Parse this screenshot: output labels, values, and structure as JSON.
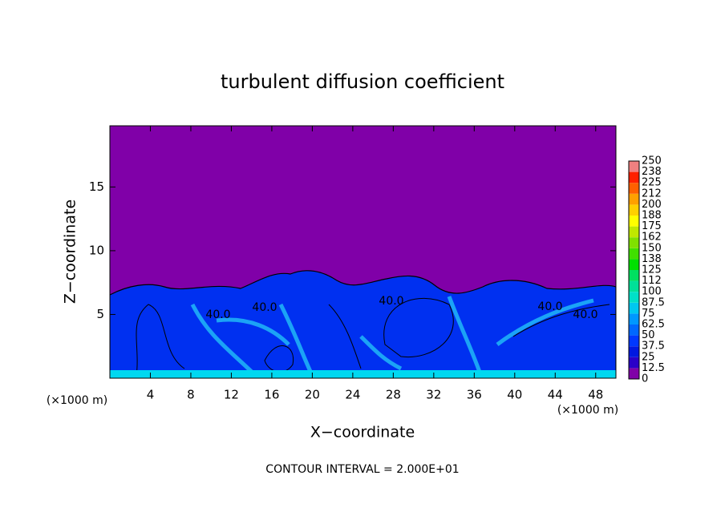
{
  "chart_data": {
    "type": "contour",
    "title": "turbulent diffusion coefficient",
    "x_label": "X−coordinate",
    "y_label": "Z−coordinate",
    "x_unit": "(×1000 m)",
    "y_unit": "(×1000 m)",
    "xlim": [
      0,
      50
    ],
    "ylim": [
      0,
      19.8
    ],
    "xticks": [
      4,
      8,
      12,
      16,
      20,
      24,
      28,
      32,
      36,
      40,
      44,
      48
    ],
    "yticks": [
      5,
      10,
      15
    ],
    "contour_labels": [
      {
        "value": 40,
        "label": "40.0"
      },
      {
        "value": 40,
        "label": "40.0"
      },
      {
        "value": 40,
        "label": "40.0"
      },
      {
        "value": 40,
        "label": "40.0"
      },
      {
        "value": 40,
        "label": "40.0"
      }
    ],
    "colorbar": {
      "levels": [
        0,
        12.5,
        25,
        37.5,
        50,
        62.5,
        75,
        87.5,
        100,
        112,
        125,
        138,
        150,
        162,
        175,
        188,
        200,
        212,
        225,
        238,
        250
      ],
      "colors": [
        "#8000a8",
        "#2a00c8",
        "#0018e0",
        "#0038ff",
        "#0068ff",
        "#0098ff",
        "#00c8f0",
        "#00e0c8",
        "#00e098",
        "#00e060",
        "#00e000",
        "#40e000",
        "#80e000",
        "#c0e800",
        "#ffff00",
        "#ffd000",
        "#ffa000",
        "#ff6000",
        "#ff2000",
        "#f08080"
      ]
    },
    "footnote": "CONTOUR INTERVAL = 2.000E+01"
  }
}
